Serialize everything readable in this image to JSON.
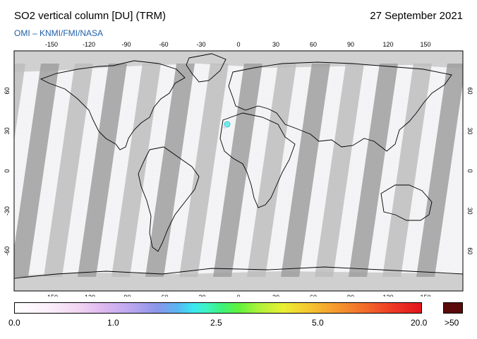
{
  "header": {
    "title": "SO2 vertical column [DU] (TRM)",
    "date": "27 September 2021",
    "credit": "OMI  –  KNMI/FMI/NASA"
  },
  "map": {
    "lon_ticks": [
      "-150",
      "-120",
      "-90",
      "-60",
      "-30",
      "0",
      "30",
      "60",
      "90",
      "120",
      "150"
    ],
    "lat_ticks": [
      "60",
      "30",
      "0",
      "-30",
      "-60"
    ],
    "lat_ticks_right": [
      "60",
      "30",
      "0",
      "30",
      "60"
    ],
    "ocean_color": "#f4f4f6",
    "no_data_color": "#cfcfcf",
    "swath_color": "#9f9f9f",
    "hotspot_color": "#6af0e8"
  },
  "colorbar": {
    "labels": [
      "0.0",
      "1.0",
      "2.5",
      "5.0",
      "20.0"
    ],
    "overflow_label": ">50",
    "overflow_color": "#5a0a0a"
  }
}
